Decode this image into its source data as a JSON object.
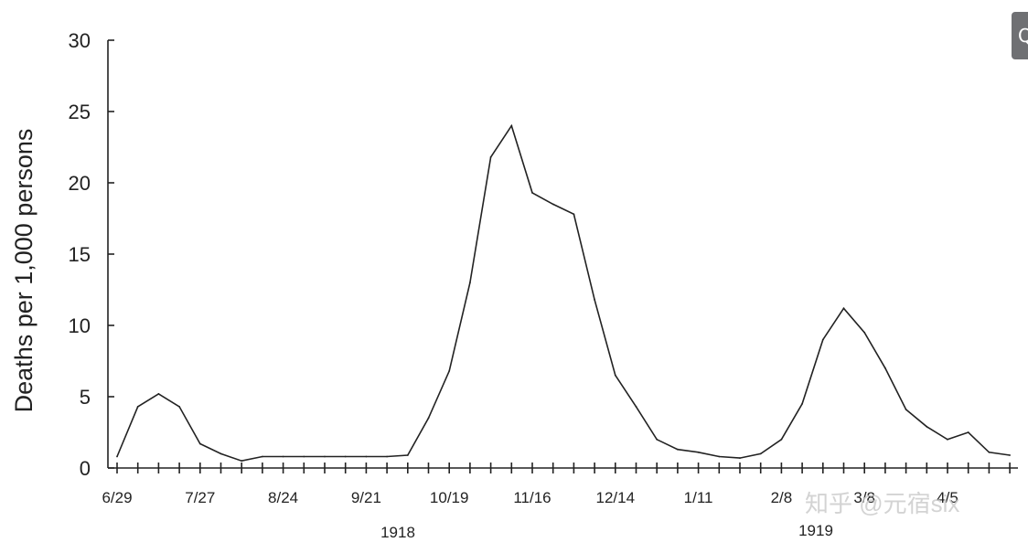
{
  "chart_data": {
    "type": "line",
    "title": "",
    "ylabel": "Deaths per 1,000 persons",
    "xlabel": "",
    "ylim": [
      0,
      30
    ],
    "yticks": [
      0,
      5,
      10,
      15,
      20,
      25,
      30
    ],
    "x_tick_labels": [
      "6/29",
      "7/27",
      "8/24",
      "9/21",
      "10/19",
      "11/16",
      "12/14",
      "1/11",
      "2/8",
      "3/8",
      "4/5"
    ],
    "year_labels": [
      "1918",
      "1919"
    ],
    "grid": false,
    "legend": "none",
    "series": [
      {
        "x": [
          "1918-06-29",
          "1918-07-06",
          "1918-07-13",
          "1918-07-20",
          "1918-07-27",
          "1918-08-03",
          "1918-08-10",
          "1918-08-17",
          "1918-08-24",
          "1918-08-31",
          "1918-09-07",
          "1918-09-14",
          "1918-09-21",
          "1918-09-28",
          "1918-10-05",
          "1918-10-12",
          "1918-10-19",
          "1918-10-26",
          "1918-11-02",
          "1918-11-09",
          "1918-11-16",
          "1918-11-23",
          "1918-11-30",
          "1918-12-07",
          "1918-12-14",
          "1918-12-21",
          "1918-12-28",
          "1919-01-04",
          "1919-01-11",
          "1919-01-18",
          "1919-01-25",
          "1919-02-01",
          "1919-02-08",
          "1919-02-15",
          "1919-02-22",
          "1919-03-01",
          "1919-03-08",
          "1919-03-15",
          "1919-03-22",
          "1919-03-29",
          "1919-04-05",
          "1919-04-12",
          "1919-04-19",
          "1919-04-26"
        ],
        "values": [
          0.8,
          4.3,
          5.2,
          4.3,
          1.7,
          1.0,
          0.5,
          0.8,
          0.8,
          0.8,
          0.8,
          0.8,
          0.8,
          0.8,
          0.9,
          3.5,
          6.8,
          13.0,
          21.8,
          24.0,
          19.3,
          18.5,
          17.8,
          11.8,
          6.5,
          4.3,
          2.0,
          1.3,
          1.1,
          0.8,
          0.7,
          1.0,
          2.0,
          4.5,
          9.0,
          11.2,
          9.5,
          7.0,
          4.1,
          2.9,
          2.0,
          2.5,
          1.1,
          0.9
        ]
      }
    ]
  },
  "watermark": "知乎 @元宿six",
  "corner_button": {
    "icon": "search-icon",
    "glyph": "Q"
  }
}
